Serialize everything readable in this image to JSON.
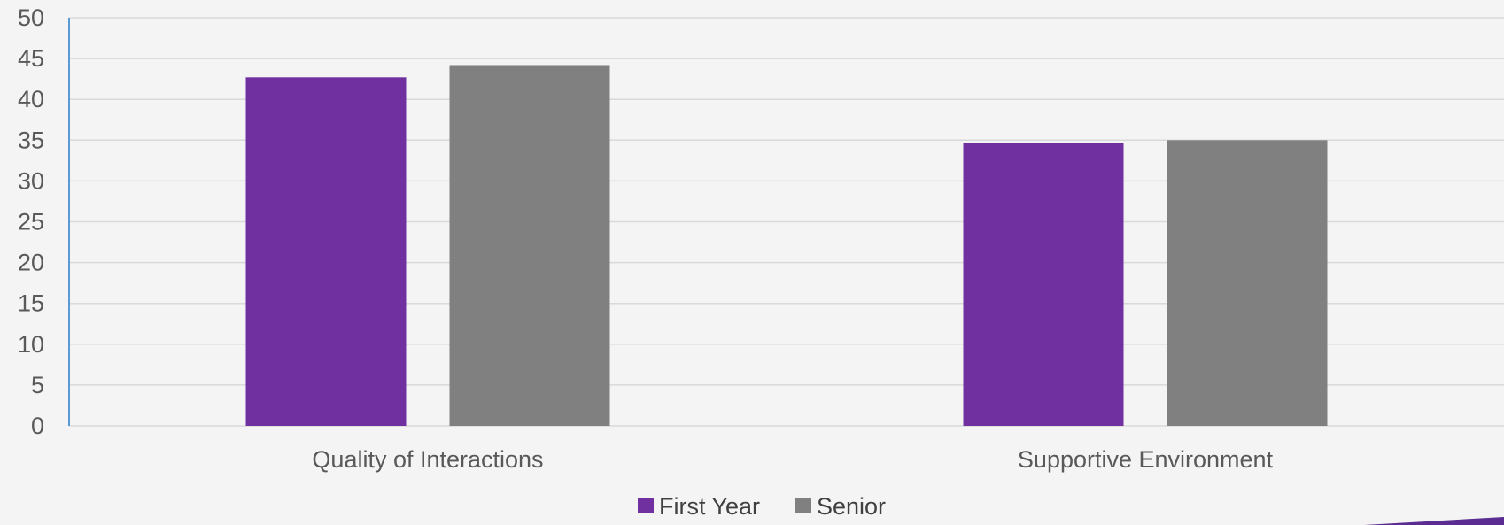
{
  "chart_data": {
    "type": "bar",
    "title": "",
    "xlabel": "",
    "ylabel": "",
    "ylim": [
      0,
      50
    ],
    "yticks": [
      0,
      5,
      10,
      15,
      20,
      25,
      30,
      35,
      40,
      45,
      50
    ],
    "grid": true,
    "legend_position": "bottom",
    "categories": [
      "Quality of Interactions",
      "Supportive Environment"
    ],
    "series": [
      {
        "name": "First Year",
        "values": [
          42.7,
          34.6
        ],
        "color": "#7030a0"
      },
      {
        "name": "Senior",
        "values": [
          44.2,
          35.0
        ],
        "color": "#808080"
      }
    ]
  },
  "colors": {
    "background": "#f4f4f4",
    "gridline": "#d9d9d9",
    "y_axis_line": "#5b9bd5",
    "corner_accent": "#5b2c91"
  }
}
